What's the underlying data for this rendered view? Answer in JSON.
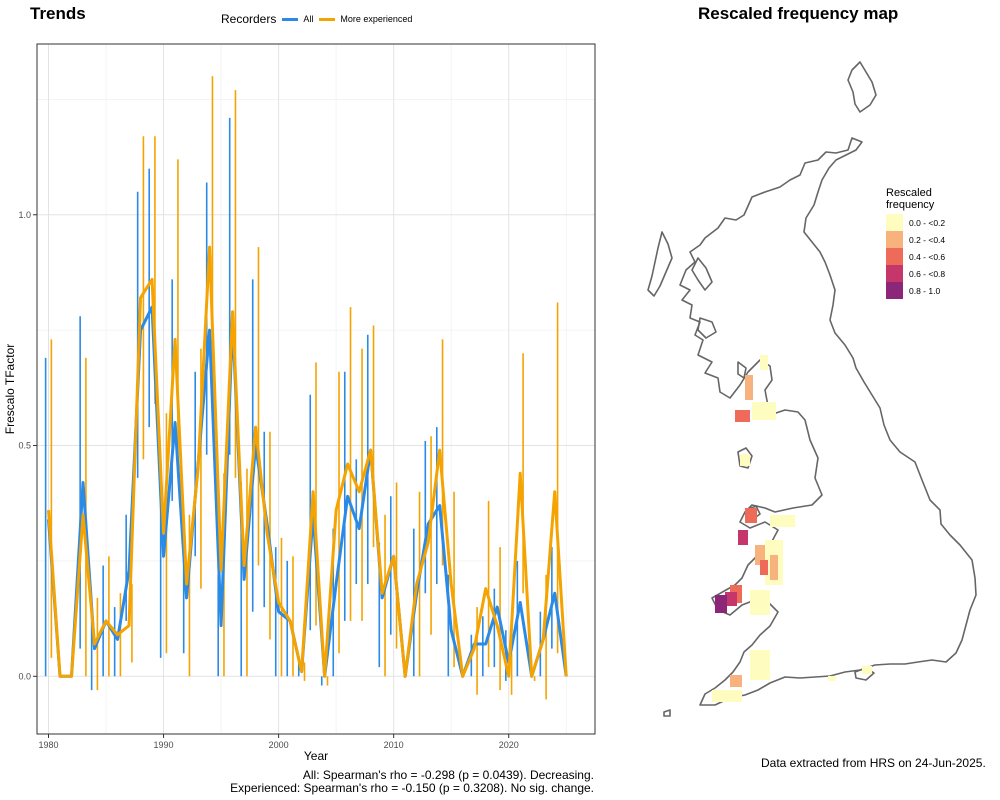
{
  "left_title": "Trends",
  "right_title": "Rescaled frequency map",
  "legend": {
    "title": "Recorders",
    "items": [
      {
        "label": "All",
        "color": "#2b8ae6"
      },
      {
        "label": "More experienced",
        "color": "#f5a300"
      }
    ]
  },
  "stats": {
    "all": "All: Spearman's rho = -0.298 (p = 0.0439). Decreasing.",
    "experienced": "Experienced: Spearman's rho = -0.150 (p = 0.3208). No sig. change."
  },
  "chart_data": {
    "type": "line",
    "xlabel": "Year",
    "ylabel": "Frescalo TFactor",
    "xlim": [
      1979,
      2027.5
    ],
    "ylim": [
      -0.125,
      1.37
    ],
    "xticks": [
      1980,
      1990,
      2000,
      2010,
      2020
    ],
    "yticks": [
      0.0,
      0.5,
      1.0
    ],
    "ytick_labels": [
      "0.0",
      "0.5",
      "1.0"
    ],
    "grid": true,
    "x": [
      1980,
      1981,
      1982,
      1983,
      1984,
      1985,
      1986,
      1987,
      1988,
      1989,
      1990,
      1991,
      1992,
      1993,
      1994,
      1995,
      1996,
      1997,
      1998,
      1999,
      2000,
      2001,
      2002,
      2003,
      2004,
      2005,
      2006,
      2007,
      2008,
      2009,
      2010,
      2011,
      2012,
      2013,
      2014,
      2015,
      2016,
      2017,
      2018,
      2019,
      2020,
      2021,
      2022,
      2023,
      2024,
      2025
    ],
    "series": [
      {
        "name": "All",
        "color": "#2b8ae6",
        "values": [
          0.34,
          0,
          0,
          0.42,
          0.06,
          0.12,
          0.08,
          0.23,
          0.75,
          0.8,
          0.26,
          0.55,
          0.17,
          0.46,
          0.75,
          0.11,
          0.77,
          0.21,
          0.5,
          0.33,
          0.14,
          0.12,
          0.01,
          0.35,
          0,
          0.2,
          0.39,
          0.32,
          0.49,
          0.17,
          0.26,
          0,
          0.18,
          0.33,
          0.37,
          0.1,
          0,
          0.07,
          0.07,
          0.15,
          0.03,
          0.16,
          0,
          0.08,
          0.18,
          0
        ],
        "lower": [
          0,
          0,
          0,
          0.06,
          -0.03,
          0,
          0,
          0.12,
          0.43,
          0.54,
          0.04,
          0.38,
          0.05,
          0.26,
          0.48,
          0,
          0.48,
          0,
          0.14,
          0.15,
          0,
          0,
          0,
          0.1,
          -0.02,
          0,
          0.12,
          0.2,
          0.2,
          0.02,
          0.09,
          0,
          0,
          0.18,
          0.2,
          0,
          0,
          0,
          0,
          0.02,
          -0.01,
          0,
          0,
          0,
          0.06,
          0
        ],
        "upper": [
          0.69,
          0,
          0,
          0.78,
          0.15,
          0.24,
          0.15,
          0.35,
          1.05,
          1.1,
          0.48,
          0.86,
          0.28,
          0.66,
          1.07,
          0.22,
          1.21,
          0.42,
          0.86,
          0.53,
          0.28,
          0.25,
          0.04,
          0.61,
          0,
          0.32,
          0.66,
          0.47,
          0.74,
          0.29,
          0.39,
          0,
          0.32,
          0.51,
          0.54,
          0.22,
          0,
          0.09,
          0.13,
          0.19,
          0.1,
          0.25,
          0,
          0.14,
          0.28,
          0
        ]
      },
      {
        "name": "More experienced",
        "color": "#f5a300",
        "values": [
          0.36,
          0,
          0,
          0.35,
          0.07,
          0.12,
          0.09,
          0.11,
          0.82,
          0.86,
          0.31,
          0.73,
          0.2,
          0.45,
          0.93,
          0.23,
          0.79,
          0.24,
          0.54,
          0.31,
          0.16,
          0.12,
          0.01,
          0.4,
          0,
          0.36,
          0.46,
          0.4,
          0.49,
          0.18,
          0.26,
          0,
          0.2,
          0.29,
          0.49,
          0.2,
          0,
          0.06,
          0.19,
          0.11,
          0,
          0.44,
          0,
          0.08,
          0.4,
          0
        ],
        "lower": [
          0.04,
          0,
          0,
          0,
          -0.03,
          0,
          0,
          0.03,
          0.47,
          0.59,
          0.05,
          0.44,
          0,
          0.19,
          0.59,
          0,
          0.43,
          0,
          0.24,
          0.08,
          0,
          0,
          -0.01,
          0.11,
          -0.02,
          0.05,
          0.12,
          0.12,
          0.28,
          0,
          0.06,
          0,
          0,
          0.09,
          0.24,
          0.02,
          0,
          -0.04,
          0.02,
          -0.03,
          -0.04,
          0.18,
          -0.01,
          -0.05,
          0.05,
          0
        ],
        "upper": [
          0.73,
          0,
          0,
          0.69,
          0.17,
          0.26,
          0.18,
          0.2,
          1.17,
          1.17,
          0.57,
          1.12,
          0.35,
          0.71,
          1.3,
          0.44,
          1.27,
          0.45,
          0.93,
          0.53,
          0.3,
          0.26,
          0.03,
          0.68,
          0,
          0.66,
          0.8,
          0.71,
          0.76,
          0.35,
          0.42,
          0,
          0.4,
          0.52,
          0.73,
          0.4,
          0,
          0.15,
          0.38,
          0.28,
          0.05,
          0.7,
          0,
          0.22,
          0.81,
          0
        ]
      }
    ]
  },
  "map": {
    "legend_title_line1": "Rescaled",
    "legend_title_line2": "frequency",
    "classes": [
      {
        "label": "0.0 - <0.2",
        "color": "#fefcbf"
      },
      {
        "label": "0.2 - <0.4",
        "color": "#f8b27d"
      },
      {
        "label": "0.4 - <0.6",
        "color": "#ee6a59"
      },
      {
        "label": "0.6 - <0.8",
        "color": "#c5376a"
      },
      {
        "label": "0.8 - 1.0",
        "color": "#8c2678"
      }
    ]
  },
  "credit": "Data extracted from HRS on 24-Jun-2025."
}
